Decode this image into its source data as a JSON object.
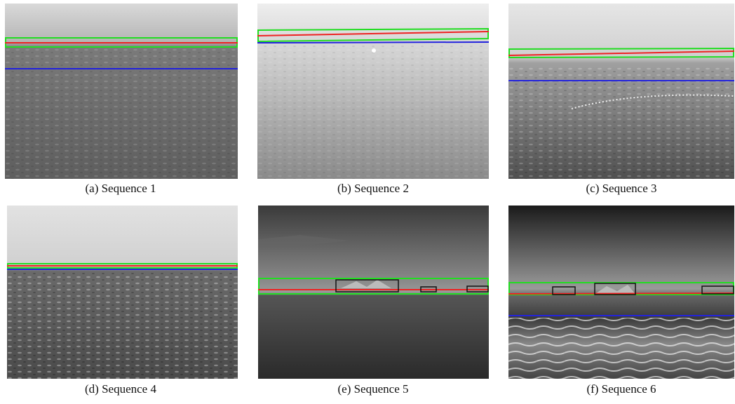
{
  "figure": {
    "captions": [
      "(a) Sequence 1",
      "(b) Sequence 2",
      "(c) Sequence 3",
      "(d) Sequence 4",
      "(e) Sequence 5",
      "(f) Sequence 6"
    ]
  }
}
